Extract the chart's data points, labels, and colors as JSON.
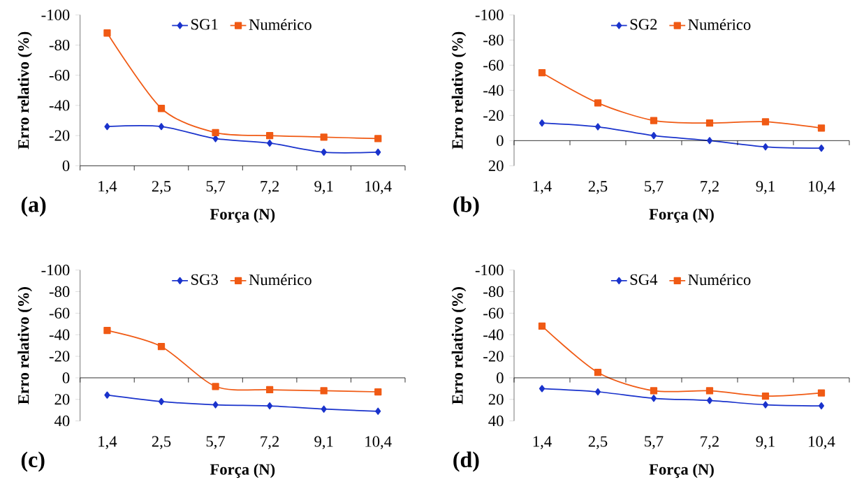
{
  "chart_data": [
    {
      "type": "line",
      "xlabel": "Força (N)",
      "ylabel": "Erro relativo (%)",
      "categories": [
        "1,4",
        "2,5",
        "5,7",
        "7,2",
        "9,1",
        "10,4"
      ],
      "ylim": [
        0,
        -100
      ],
      "yticks": [
        -100,
        -80,
        -60,
        -40,
        -20,
        0
      ],
      "legend": "top",
      "annotations": [
        "(a)"
      ],
      "series": [
        {
          "name": "SG1",
          "color": "#1a33cc",
          "marker": "diamond",
          "values": [
            -26,
            -26,
            -18,
            -15,
            -9,
            -9
          ]
        },
        {
          "name": "Numérico",
          "color": "#f05a14",
          "marker": "square",
          "values": [
            -88,
            -38,
            -22,
            -20,
            -19,
            -18
          ]
        }
      ]
    },
    {
      "type": "line",
      "xlabel": "Força (N)",
      "ylabel": "Erro relativo (%)",
      "categories": [
        "1,4",
        "2,5",
        "5,7",
        "7,2",
        "9,1",
        "10,4"
      ],
      "ylim": [
        20,
        -100
      ],
      "yticks": [
        -100,
        -80,
        -60,
        -40,
        -20,
        0,
        20
      ],
      "legend": "top",
      "annotations": [
        "(b)"
      ],
      "series": [
        {
          "name": "SG2",
          "color": "#1a33cc",
          "marker": "diamond",
          "values": [
            -14,
            -11,
            -4,
            0,
            5,
            6
          ]
        },
        {
          "name": "Numérico",
          "color": "#f05a14",
          "marker": "square",
          "values": [
            -54,
            -30,
            -16,
            -14,
            -15,
            -10
          ]
        }
      ]
    },
    {
      "type": "line",
      "xlabel": "Força (N)",
      "ylabel": "Erro relativo (%)",
      "categories": [
        "1,4",
        "2,5",
        "5,7",
        "7,2",
        "9,1",
        "10,4"
      ],
      "ylim": [
        40,
        -100
      ],
      "yticks": [
        -100,
        -80,
        -60,
        -40,
        -20,
        0,
        20,
        40
      ],
      "legend": "top",
      "annotations": [
        "(c)"
      ],
      "series": [
        {
          "name": "SG3",
          "color": "#1a33cc",
          "marker": "diamond",
          "values": [
            16,
            22,
            25,
            26,
            29,
            31
          ]
        },
        {
          "name": "Numérico",
          "color": "#f05a14",
          "marker": "square",
          "values": [
            -44,
            -29,
            8,
            11,
            12,
            13
          ]
        }
      ]
    },
    {
      "type": "line",
      "xlabel": "Força (N)",
      "ylabel": "Erro relativo (%)",
      "categories": [
        "1,4",
        "2,5",
        "5,7",
        "7,2",
        "9,1",
        "10,4"
      ],
      "ylim": [
        40,
        -100
      ],
      "yticks": [
        -100,
        -80,
        -60,
        -40,
        -20,
        0,
        20,
        40
      ],
      "legend": "top",
      "annotations": [
        "(d)"
      ],
      "series": [
        {
          "name": "SG4",
          "color": "#1a33cc",
          "marker": "diamond",
          "values": [
            10,
            13,
            19,
            21,
            25,
            26
          ]
        },
        {
          "name": "Numérico",
          "color": "#f05a14",
          "marker": "square",
          "values": [
            -48,
            -5,
            12,
            12,
            17,
            14
          ]
        }
      ]
    }
  ]
}
